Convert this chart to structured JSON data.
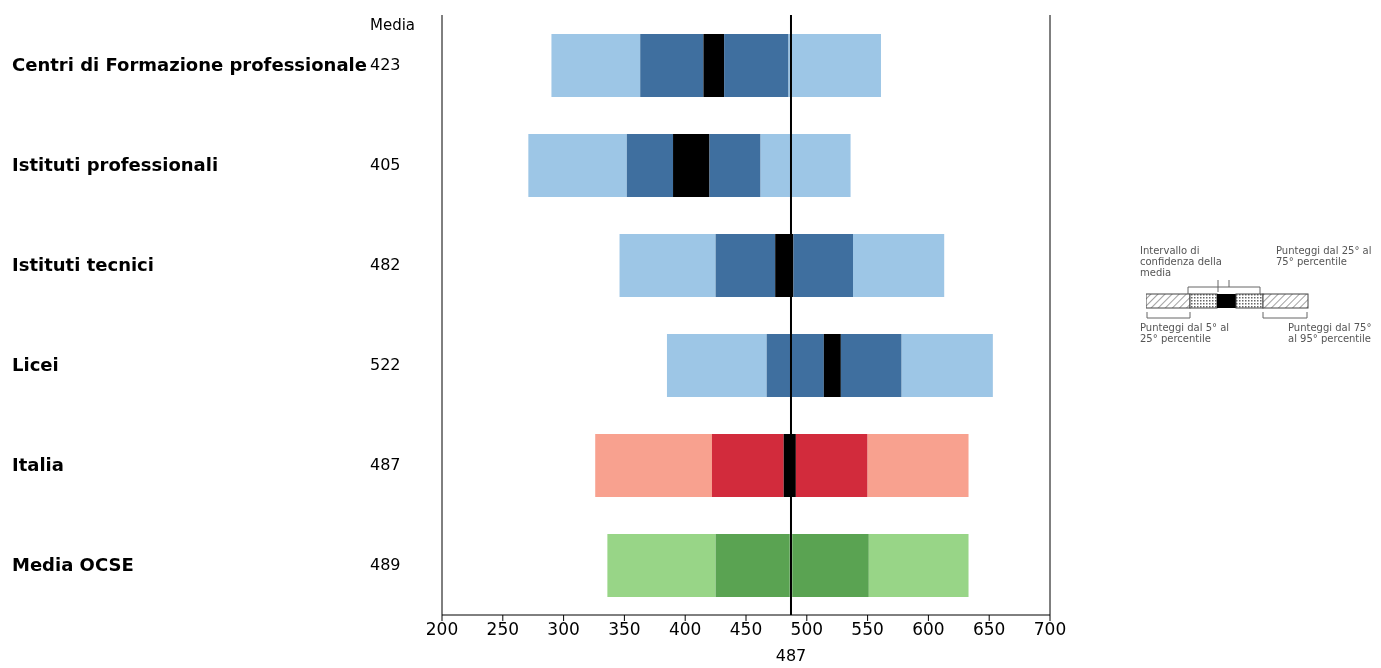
{
  "chart_data": {
    "type": "bar",
    "orientation": "horizontal",
    "categories": [
      "Centri di Formazione professionale",
      "Istituti professionali",
      "Istituti tecnici",
      "Licei",
      "Italia",
      "Media OCSE"
    ],
    "series": [
      {
        "colors": [
          "#9dc6e6",
          "#9dc6e6",
          "#9dc6e6",
          "#9dc6e6",
          "#f8a18f",
          "#98d587"
        ],
        "base": [
          290,
          271,
          346,
          385,
          326,
          336
        ],
        "values": [
          73,
          81,
          79,
          82,
          96,
          89
        ]
      },
      {
        "colors": [
          "#3f6f9f",
          "#3f6f9f",
          "#3f6f9f",
          "#3f6f9f",
          "#d22b3c",
          "#5aa352"
        ],
        "base": [
          363,
          352,
          425,
          467,
          422,
          425
        ],
        "values": [
          52,
          38,
          49,
          47,
          59,
          61
        ]
      },
      {
        "colors": [
          "#000000",
          "#000000",
          "#000000",
          "#000000",
          "#000000",
          "#000000"
        ],
        "base": [
          415,
          390,
          474,
          514,
          481,
          null
        ],
        "values": [
          17,
          30,
          15,
          14,
          10,
          null
        ]
      },
      {
        "colors": [
          "#3f6f9f",
          "#3f6f9f",
          "#3f6f9f",
          "#3f6f9f",
          "#d22b3c",
          "#5aa352"
        ],
        "base": [
          432,
          420,
          489,
          528,
          491,
          488
        ],
        "values": [
          53,
          42,
          49,
          50,
          59,
          63
        ]
      },
      {
        "colors": [
          "#9dc6e6",
          "#9dc6e6",
          "#9dc6e6",
          "#9dc6e6",
          "#f8a18f",
          "#98d587"
        ],
        "base": [
          485,
          462,
          538,
          578,
          550,
          551
        ],
        "values": [
          76,
          74,
          75,
          75,
          83,
          82
        ]
      }
    ],
    "xlim": [
      200,
      700
    ],
    "xticks": [
      200,
      250,
      300,
      350,
      400,
      450,
      500,
      550,
      600,
      650,
      700
    ],
    "ref_lines": [
      {
        "axis": "x",
        "value": 487,
        "label": "487",
        "color": "#000000"
      }
    ],
    "annotations": [
      "Media",
      "423",
      "405",
      "482",
      "522",
      "487",
      "489",
      "Intervallo di confidenza della media",
      "Punteggi dal 25° al 75° percentile",
      "Punteggi dal 5° al 25° percentile",
      "Punteggi dal 75° al 95° percentile"
    ]
  }
}
